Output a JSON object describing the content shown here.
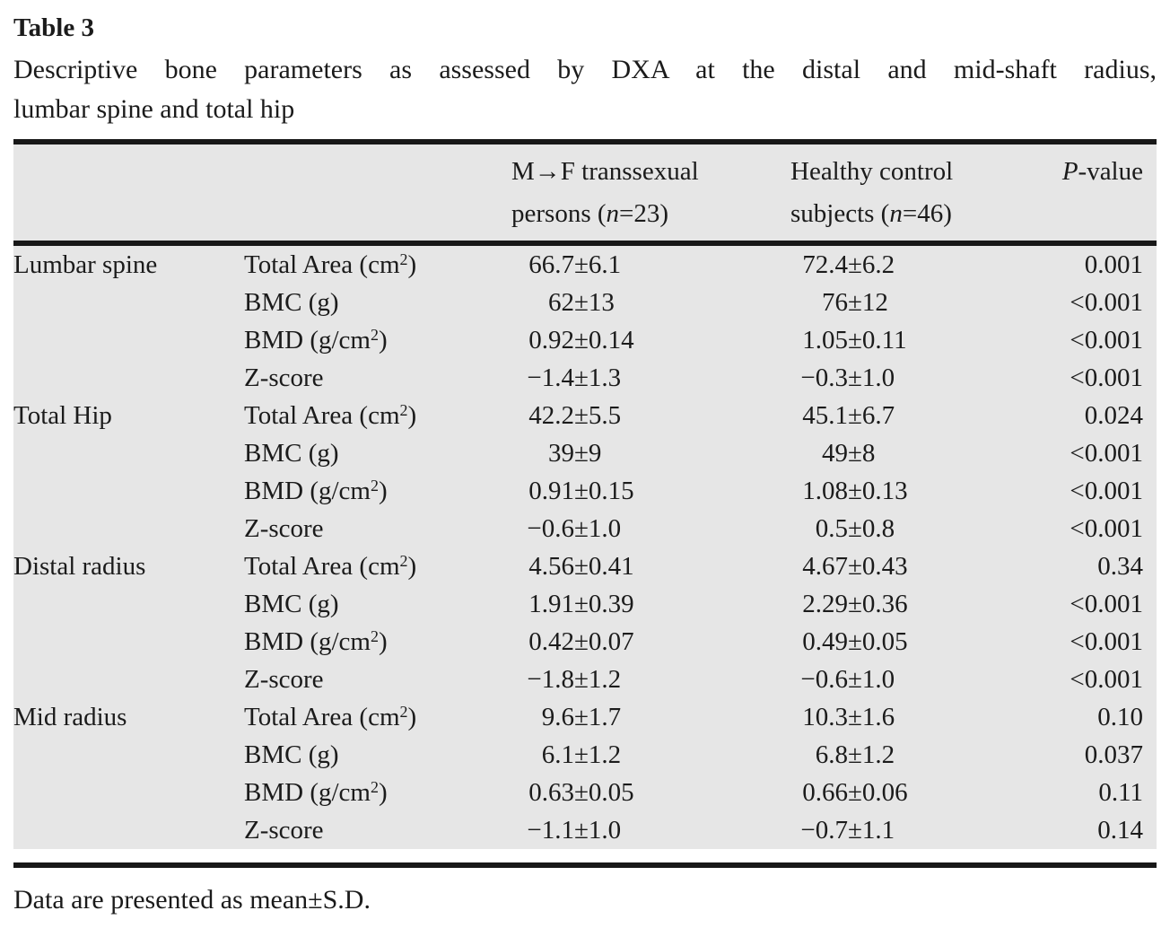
{
  "title": "Table 3",
  "caption": {
    "line1": "Descriptive bone parameters as assessed by DXA at the distal and mid-shaft radius,",
    "line2": "lumbar spine and total hip"
  },
  "header": {
    "group1": {
      "line1": "M→F transsexual",
      "line2_pre": "persons (",
      "n": "n",
      "line2_post": "=23)"
    },
    "group2": {
      "line1": "Healthy control",
      "line2_pre": "subjects (",
      "n": "n",
      "line2_post": "=46)"
    },
    "p": {
      "italic": "P",
      "rest": "-value"
    }
  },
  "rows": [
    {
      "region": "Lumbar spine",
      "param_pre": "Total Area (cm",
      "param_sup": "2",
      "param_post": ")",
      "mf_m": "66.7",
      "mf_s": "±6.1",
      "hc_m": "72.4",
      "hc_s": "±6.2",
      "p": "0.001"
    },
    {
      "region": "",
      "param_pre": "BMC (g)",
      "param_sup": "",
      "param_post": "",
      "mf_m": "62",
      "mf_s": "±13",
      "hc_m": "76",
      "hc_s": "±12",
      "p": "<0.001"
    },
    {
      "region": "",
      "param_pre": "BMD (g/cm",
      "param_sup": "2",
      "param_post": ")",
      "mf_m": "0.92",
      "mf_s": "±0.14",
      "hc_m": "1.05",
      "hc_s": "±0.11",
      "p": "<0.001"
    },
    {
      "region": "",
      "param_pre": "Z-score",
      "param_sup": "",
      "param_post": "",
      "mf_m": "−1.4",
      "mf_s": "±1.3",
      "hc_m": "−0.3",
      "hc_s": "±1.0",
      "p": "<0.001"
    },
    {
      "region": "Total Hip",
      "param_pre": "Total Area (cm",
      "param_sup": "2",
      "param_post": ")",
      "mf_m": "42.2",
      "mf_s": "±5.5",
      "hc_m": "45.1",
      "hc_s": "±6.7",
      "p": "0.024"
    },
    {
      "region": "",
      "param_pre": "BMC (g)",
      "param_sup": "",
      "param_post": "",
      "mf_m": "39",
      "mf_s": "±9",
      "hc_m": "49",
      "hc_s": "±8",
      "p": "<0.001"
    },
    {
      "region": "",
      "param_pre": "BMD (g/cm",
      "param_sup": "2",
      "param_post": ")",
      "mf_m": "0.91",
      "mf_s": "±0.15",
      "hc_m": "1.08",
      "hc_s": "±0.13",
      "p": "<0.001"
    },
    {
      "region": "",
      "param_pre": "Z-score",
      "param_sup": "",
      "param_post": "",
      "mf_m": "−0.6",
      "mf_s": "±1.0",
      "hc_m": "0.5",
      "hc_s": "±0.8",
      "p": "<0.001"
    },
    {
      "region": "Distal radius",
      "param_pre": "Total Area (cm",
      "param_sup": "2",
      "param_post": ")",
      "mf_m": "4.56",
      "mf_s": "±0.41",
      "hc_m": "4.67",
      "hc_s": "±0.43",
      "p": "0.34"
    },
    {
      "region": "",
      "param_pre": "BMC (g)",
      "param_sup": "",
      "param_post": "",
      "mf_m": "1.91",
      "mf_s": "±0.39",
      "hc_m": "2.29",
      "hc_s": "±0.36",
      "p": "<0.001"
    },
    {
      "region": "",
      "param_pre": "BMD (g/cm",
      "param_sup": "2",
      "param_post": ")",
      "mf_m": "0.42",
      "mf_s": "±0.07",
      "hc_m": "0.49",
      "hc_s": "±0.05",
      "p": "<0.001"
    },
    {
      "region": "",
      "param_pre": "Z-score",
      "param_sup": "",
      "param_post": "",
      "mf_m": "−1.8",
      "mf_s": "±1.2",
      "hc_m": "−0.6",
      "hc_s": "±1.0",
      "p": "<0.001"
    },
    {
      "region": "Mid radius",
      "param_pre": "Total Area (cm",
      "param_sup": "2",
      "param_post": ")",
      "mf_m": "9.6",
      "mf_s": "±1.7",
      "hc_m": "10.3",
      "hc_s": "±1.6",
      "p": "0.10"
    },
    {
      "region": "",
      "param_pre": "BMC (g)",
      "param_sup": "",
      "param_post": "",
      "mf_m": "6.1",
      "mf_s": "±1.2",
      "hc_m": "6.8",
      "hc_s": "±1.2",
      "p": "0.037"
    },
    {
      "region": "",
      "param_pre": "BMD (g/cm",
      "param_sup": "2",
      "param_post": ")",
      "mf_m": "0.63",
      "mf_s": "±0.05",
      "hc_m": "0.66",
      "hc_s": "±0.06",
      "p": "0.11"
    },
    {
      "region": "",
      "param_pre": "Z-score",
      "param_sup": "",
      "param_post": "",
      "mf_m": "−1.1",
      "mf_s": "±1.0",
      "hc_m": "−0.7",
      "hc_s": "±1.1",
      "p": "0.14"
    }
  ],
  "footnote": "Data are presented as mean±S.D.",
  "colors": {
    "table_bg": "#e6e6e6",
    "rule": "#181818",
    "text": "#1b1b1b"
  }
}
